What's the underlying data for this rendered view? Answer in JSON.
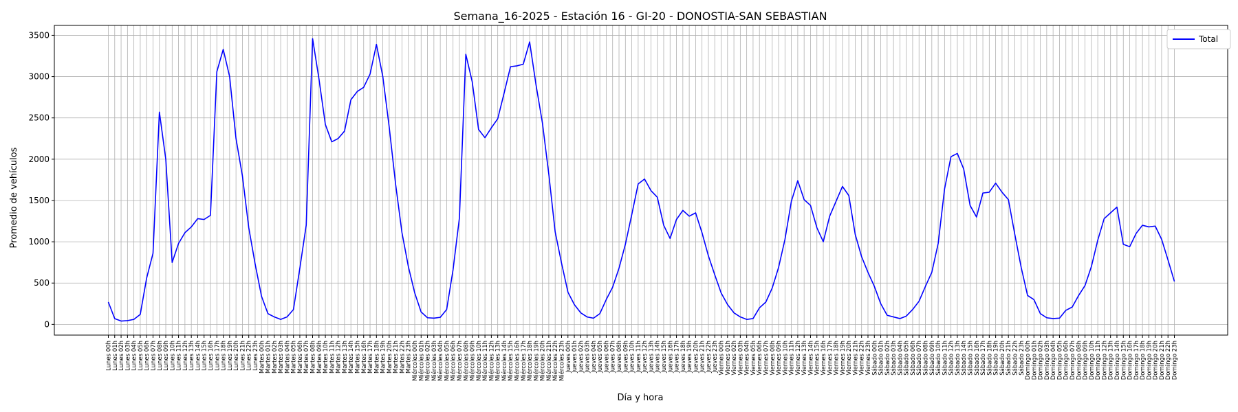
{
  "chart_data": {
    "type": "line",
    "title": "Semana_16-2025 - Estación 16 - GI-20  - DONOSTIA-SAN SEBASTIAN",
    "xlabel": "Día y hora",
    "ylabel": "Promedio de vehículos",
    "ylim": [
      -130,
      3620
    ],
    "yticks": [
      0,
      500,
      1000,
      1500,
      2000,
      2500,
      3000,
      3500
    ],
    "grid": true,
    "legend_position": "top-right",
    "colors": {
      "Total": "#0000ff",
      "grid": "#b0b0b0"
    },
    "days": [
      "Lunes",
      "Martes",
      "Miércoles",
      "Jueves",
      "Viernes",
      "Sábado",
      "Domingo"
    ],
    "hour_suffix": "h",
    "series": [
      {
        "name": "Total",
        "values": [
          270,
          70,
          40,
          45,
          60,
          120,
          560,
          860,
          2570,
          2000,
          750,
          980,
          1110,
          1180,
          1280,
          1270,
          1320,
          3060,
          3330,
          3000,
          2250,
          1800,
          1170,
          730,
          340,
          130,
          90,
          60,
          90,
          180,
          680,
          1200,
          3460,
          2970,
          2420,
          2210,
          2250,
          2340,
          2720,
          2820,
          2870,
          3030,
          3390,
          3000,
          2390,
          1700,
          1110,
          700,
          380,
          150,
          80,
          75,
          85,
          180,
          660,
          1290,
          3270,
          2940,
          2360,
          2260,
          2380,
          2490,
          2800,
          3120,
          3130,
          3150,
          3420,
          2900,
          2440,
          1820,
          1120,
          740,
          390,
          240,
          140,
          90,
          75,
          130,
          300,
          450,
          680,
          970,
          1330,
          1700,
          1760,
          1620,
          1540,
          1200,
          1040,
          1270,
          1380,
          1310,
          1350,
          1110,
          830,
          600,
          380,
          240,
          140,
          90,
          60,
          70,
          200,
          270,
          440,
          690,
          1030,
          1490,
          1740,
          1510,
          1440,
          1170,
          1000,
          1310,
          1490,
          1670,
          1560,
          1090,
          820,
          630,
          460,
          250,
          110,
          90,
          70,
          100,
          180,
          280,
          460,
          630,
          980,
          1640,
          2030,
          2070,
          1880,
          1440,
          1300,
          1590,
          1600,
          1710,
          1600,
          1510,
          1090,
          690,
          350,
          300,
          130,
          80,
          70,
          75,
          170,
          210,
          350,
          470,
          700,
          1020,
          1280,
          1350,
          1420,
          970,
          940,
          1100,
          1200,
          1180,
          1190,
          1030,
          780,
          520
        ]
      }
    ]
  }
}
